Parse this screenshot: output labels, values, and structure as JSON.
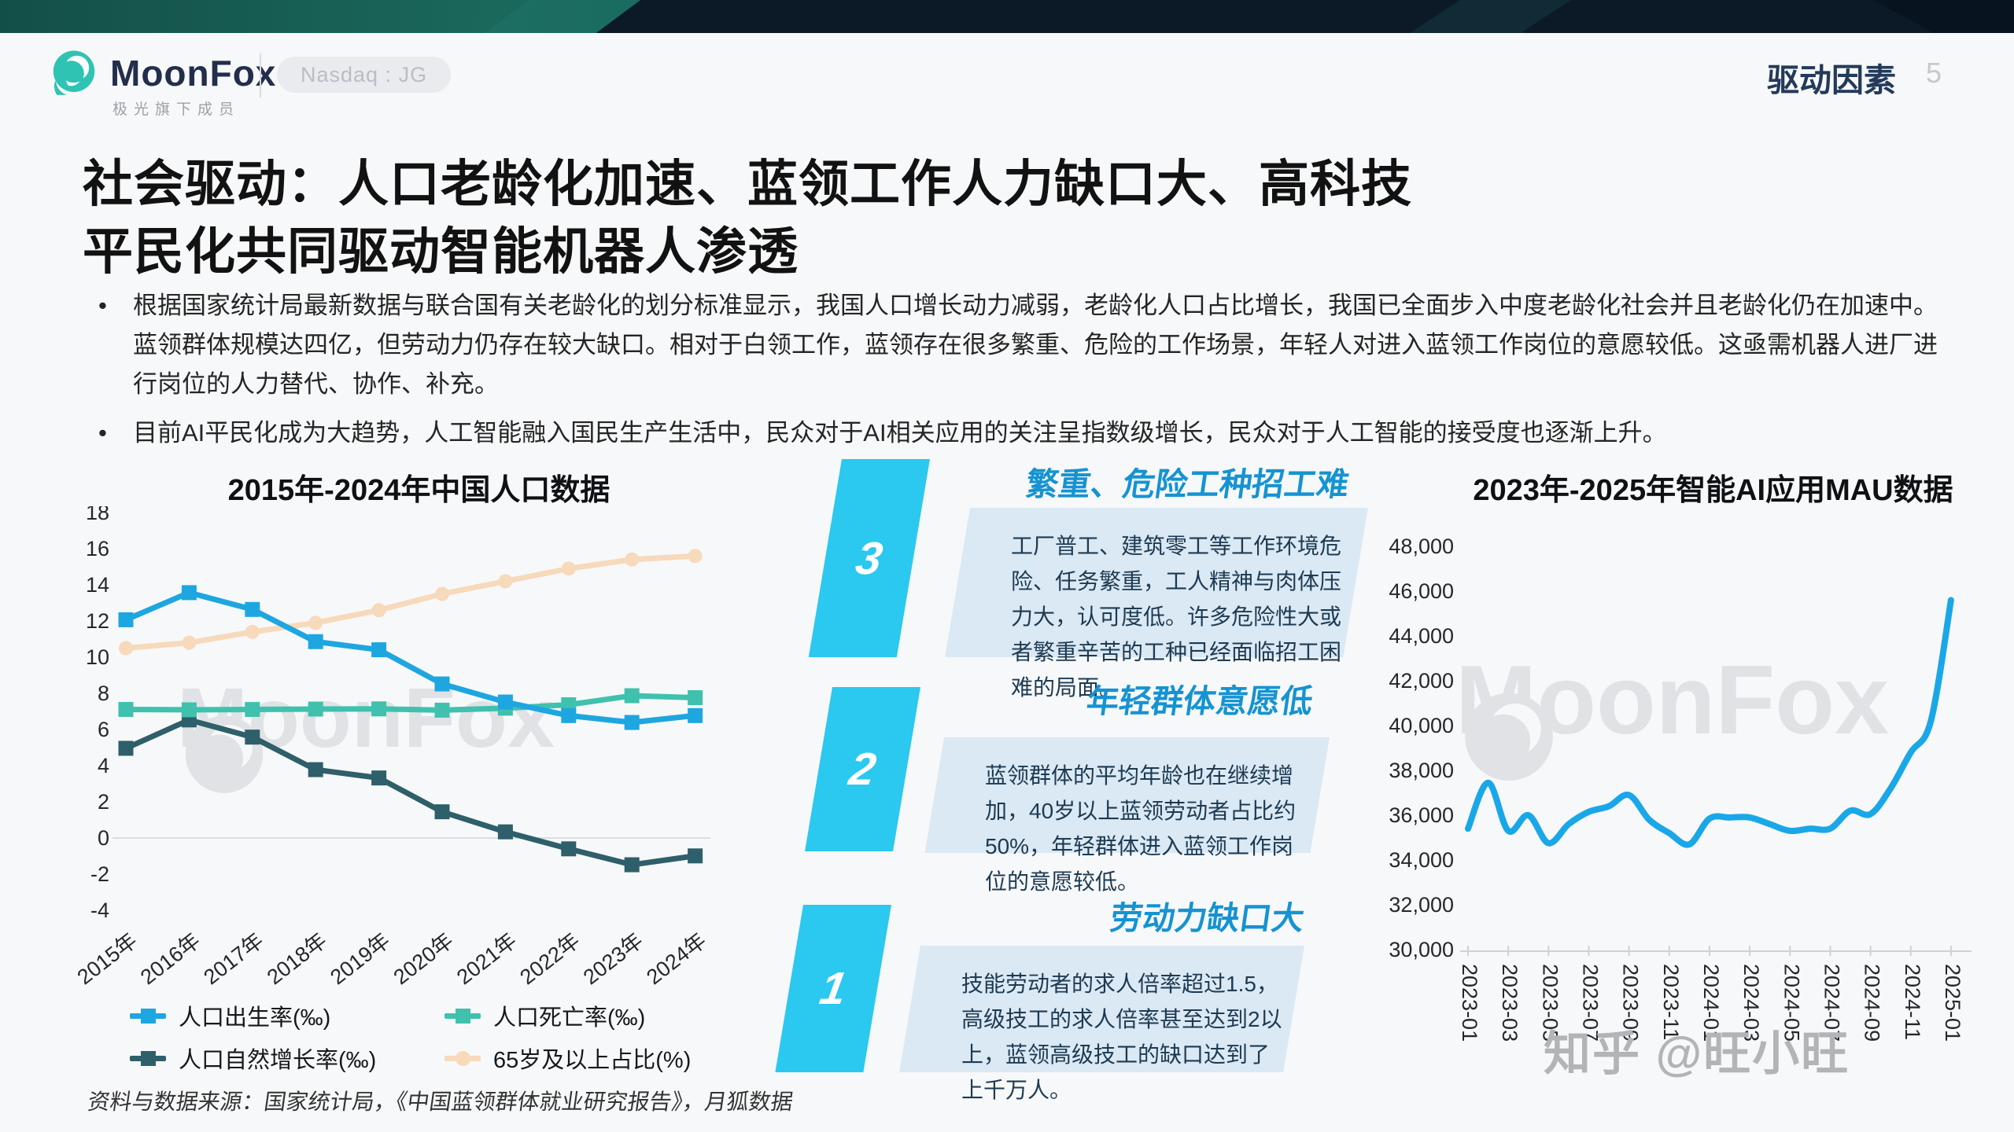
{
  "header": {
    "logo_text": "MoonFox",
    "logo_subtext": "极光旗下成员",
    "badge": "Nasdaq : JG",
    "section_label": "驱动因素",
    "page_number": "5"
  },
  "title": {
    "line1": "社会驱动：人口老龄化加速、蓝领工作人力缺口大、高科技",
    "line2": "平民化共同驱动智能机器人渗透"
  },
  "bullets": [
    "根据国家统计局最新数据与联合国有关老龄化的划分标准显示，我国人口增长动力减弱，老龄化人口占比增长，我国已全面步入中度老龄化社会并且老龄化仍在加速中。蓝领群体规模达四亿，但劳动力仍存在较大缺口。相对于白领工作，蓝领存在很多繁重、危险的工作场景，年轻人对进入蓝领工作岗位的意愿较低。这亟需机器人进厂进行岗位的人力替代、协作、补充。",
    "目前AI平民化成为大趋势，人工智能融入国民生产生活中，民众对于AI相关应用的关注呈指数级增长，民众对于人工智能的接受度也逐渐上升。"
  ],
  "middle": {
    "items": [
      {
        "num": "3",
        "title": "繁重、危险工种招工难",
        "body": "工厂普工、建筑零工等工作环境危险、任务繁重，工人精神与肉体压力大，认可度低。许多危险性大或者繁重辛苦的工种已经面临招工困难的局面。"
      },
      {
        "num": "2",
        "title": "年轻群体意愿低",
        "body": "蓝领群体的平均年龄也在继续增加，40岁以上蓝领劳动者占比约50%，年轻群体进入蓝领工作岗位的意愿较低。"
      },
      {
        "num": "1",
        "title": "劳动力缺口大",
        "body": "技能劳动者的求人倍率超过1.5，高级技工的求人倍率甚至达到2以上，蓝领高级技工的缺口达到了上千万人。"
      }
    ]
  },
  "source": "资料与数据来源：国家统计局，《中国蓝领群体就业研究报告》，月狐数据",
  "watermark": {
    "brand": "MoonFox",
    "credit": "知乎 @旺小旺"
  },
  "colors": {
    "accent_cyan": "#2bc8f0",
    "item_title_blue": "#1593d2",
    "banner_teal": "#27957f",
    "banner_navy": "#0c1a27"
  },
  "chart_data": [
    {
      "type": "line",
      "title": "2015年-2024年中国人口数据",
      "categories": [
        "2015年",
        "2016年",
        "2017年",
        "2018年",
        "2019年",
        "2020年",
        "2021年",
        "2022年",
        "2023年",
        "2024年"
      ],
      "series": [
        {
          "name": "人口出生率(‰)",
          "color": "#1ea6e0",
          "marker": "square",
          "values": [
            12.07,
            13.57,
            12.64,
            10.86,
            10.41,
            8.52,
            7.52,
            6.77,
            6.39,
            6.77
          ]
        },
        {
          "name": "人口死亡率(‰)",
          "color": "#3fc1ae",
          "marker": "square",
          "values": [
            7.11,
            7.09,
            7.11,
            7.13,
            7.14,
            7.07,
            7.18,
            7.37,
            7.87,
            7.76
          ]
        },
        {
          "name": "人口自然增长率(‰)",
          "color": "#2e5f6b",
          "marker": "square",
          "values": [
            4.96,
            6.53,
            5.58,
            3.78,
            3.32,
            1.45,
            0.34,
            -0.6,
            -1.48,
            -0.99
          ]
        },
        {
          "name": "65岁及以上占比(%)",
          "color": "#f7d9bb",
          "marker": "circle",
          "values": [
            10.5,
            10.8,
            11.4,
            11.9,
            12.6,
            13.5,
            14.2,
            14.9,
            15.4,
            15.6
          ]
        }
      ],
      "ylim": [
        -4,
        18
      ],
      "ytick_step": 2,
      "grid": "horizontal line at 0 only",
      "legend_position": "bottom"
    },
    {
      "type": "line",
      "title": "2023年-2025年智能AI应用MAU数据",
      "x": [
        "2023-01",
        "2023-02",
        "2023-03",
        "2023-04",
        "2023-05",
        "2023-06",
        "2023-07",
        "2023-08",
        "2023-09",
        "2023-10",
        "2023-11",
        "2023-12",
        "2024-01",
        "2024-02",
        "2024-03",
        "2024-04",
        "2024-05",
        "2024-06",
        "2024-07",
        "2024-08",
        "2024-09",
        "2024-10",
        "2024-11",
        "2024-12",
        "2025-01"
      ],
      "values": [
        35400,
        37450,
        35300,
        36000,
        34750,
        35600,
        36150,
        36400,
        36900,
        35800,
        35200,
        34700,
        35850,
        35900,
        35900,
        35600,
        35300,
        35400,
        35400,
        36200,
        36050,
        37200,
        38800,
        40200,
        45600
      ],
      "xtick_labels": [
        "2023-01",
        "2023-03",
        "2023-05",
        "2023-07",
        "2023-09",
        "2023-11",
        "2024-01",
        "2024-03",
        "2024-05",
        "2024-07",
        "2024-09",
        "2024-11",
        "2025-01"
      ],
      "color": "#1aa7e8",
      "ylim": [
        30000,
        48000
      ],
      "ytick_step": 2000,
      "grid": "none, bottom axis line only",
      "legend_position": "none"
    }
  ]
}
